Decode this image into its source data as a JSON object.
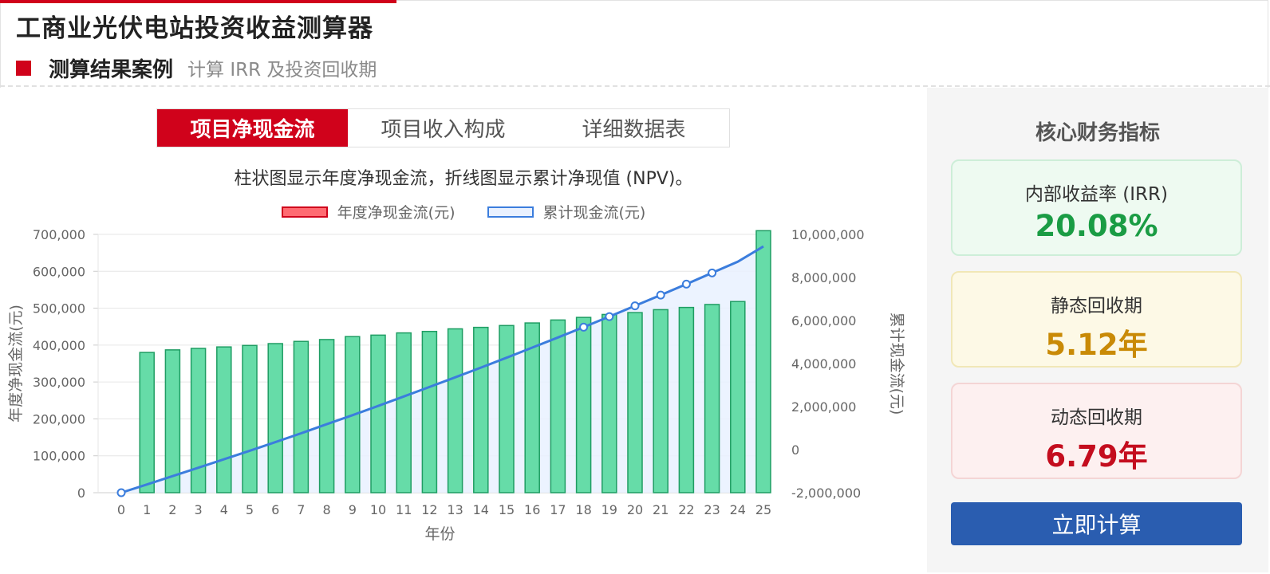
{
  "app": {
    "title": "工商业光伏电站投资收益测算器"
  },
  "section": {
    "title": "测算结果案例",
    "subtitle": "计算 IRR 及投资回收期"
  },
  "tabs": [
    {
      "label": "项目净现金流",
      "active": true
    },
    {
      "label": "项目收入构成",
      "active": false
    },
    {
      "label": "详细数据表",
      "active": false
    }
  ],
  "chart_caption": "柱状图显示年度净现金流，折线图显示累计净现值 (NPV)。",
  "metrics": {
    "title": "核心财务指标",
    "irr": {
      "label": "内部收益率 (IRR)",
      "value": "20.08%"
    },
    "static_payback": {
      "label": "静态回收期",
      "value": "5.12年"
    },
    "dynamic_payback": {
      "label": "动态回收期",
      "value": "6.79年"
    }
  },
  "calculate_button": "立即计算",
  "colors": {
    "brand_red": "#d0021b",
    "bar_fill": "#66dca8",
    "bar_stroke": "#1f9d63",
    "line_blue": "#3b7ddd",
    "button_blue": "#2a5db0"
  },
  "chart_data": {
    "type": "bar",
    "xlabel": "年份",
    "ylabel": "年度净现金流(元)",
    "y2label": "累计现金流(元)",
    "categories": [
      "0",
      "1",
      "2",
      "3",
      "4",
      "5",
      "6",
      "7",
      "8",
      "9",
      "10",
      "11",
      "12",
      "13",
      "14",
      "15",
      "16",
      "17",
      "18",
      "19",
      "20",
      "21",
      "22",
      "23",
      "24",
      "25"
    ],
    "ylim": [
      0,
      700000
    ],
    "y_ticks": [
      "0",
      "100,000",
      "200,000",
      "300,000",
      "400,000",
      "500,000",
      "600,000",
      "700,000"
    ],
    "y2lim": [
      -2000000,
      10000000
    ],
    "y2_ticks": [
      "-2,000,000",
      "0",
      "2,000,000",
      "4,000,000",
      "6,000,000",
      "8,000,000",
      "10,000,000"
    ],
    "legend": [
      "年度净现金流(元)",
      "累计现金流(元)"
    ],
    "legend_position": "top-center",
    "grid": true,
    "series": [
      {
        "name": "年度净现金流(元)",
        "type": "bar",
        "x": [
          1,
          2,
          3,
          4,
          5,
          6,
          7,
          8,
          9,
          10,
          11,
          12,
          13,
          14,
          15,
          16,
          17,
          18,
          19,
          20,
          21,
          22,
          23,
          24,
          25
        ],
        "values": [
          380000,
          387000,
          391000,
          395000,
          399000,
          404000,
          410000,
          415000,
          423000,
          427000,
          433000,
          437000,
          444000,
          448000,
          453000,
          460000,
          468000,
          475000,
          483000,
          488000,
          496000,
          502000,
          510000,
          518000,
          710000
        ]
      },
      {
        "name": "累计现金流(元)",
        "type": "line",
        "x": [
          0,
          1,
          2,
          3,
          4,
          5,
          6,
          7,
          8,
          9,
          10,
          11,
          12,
          13,
          14,
          15,
          16,
          17,
          18,
          19,
          20,
          21,
          22,
          23,
          24,
          25
        ],
        "values": [
          -2000000,
          -1620000,
          -1230000,
          -840000,
          -450000,
          -50000,
          350000,
          760000,
          1180000,
          1600000,
          2030000,
          2470000,
          2910000,
          3360000,
          3810000,
          4270000,
          4740000,
          5210000,
          5690000,
          6180000,
          6680000,
          7180000,
          7690000,
          8210000,
          8730000,
          9440000
        ],
        "markers": [
          0,
          18,
          19,
          20,
          21,
          22,
          23
        ]
      }
    ]
  }
}
